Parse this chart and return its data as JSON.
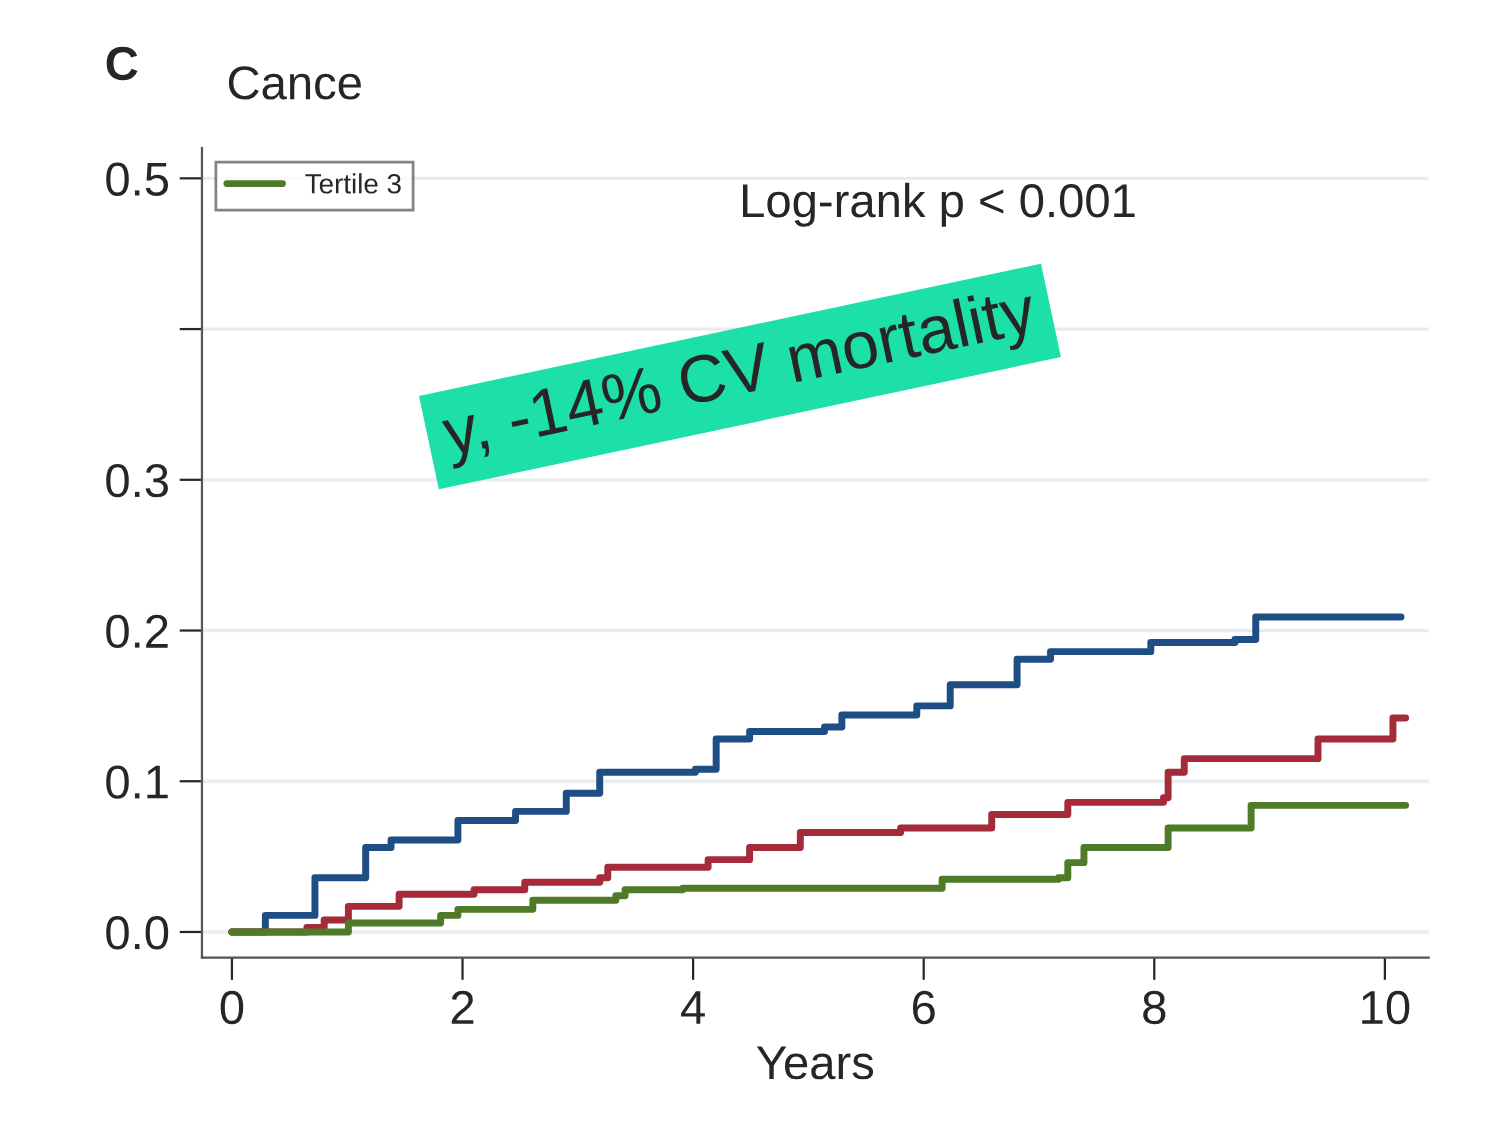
{
  "chart_data": {
    "type": "step",
    "title": "Cance",
    "xlabel": "Years",
    "annotations": [
      "C",
      "Log-rank p < 0.001",
      "y, -14% CV mortality"
    ],
    "series": [
      {
        "color": "#1f4e85",
        "x": [
          0,
          0.29,
          0.72,
          1.16,
          1.38,
          1.96,
          2.46,
          2.9,
          3.19,
          4.02,
          4.2,
          4.49,
          5.14,
          5.29,
          5.94,
          6.23,
          6.81,
          7.1,
          7.97,
          8.7,
          8.88,
          10.14
        ],
        "values": [
          0,
          0.011,
          0.036,
          0.056,
          0.061,
          0.074,
          0.08,
          0.092,
          0.106,
          0.108,
          0.128,
          0.133,
          0.136,
          0.144,
          0.15,
          0.164,
          0.181,
          0.186,
          0.192,
          0.194,
          0.209,
          0.209
        ]
      },
      {
        "color": "#a52a3a",
        "x": [
          0,
          0.65,
          0.8,
          1.01,
          1.45,
          2.1,
          2.54,
          3.19,
          3.26,
          4.13,
          4.49,
          4.93,
          5.8,
          6.59,
          7.25,
          8.08,
          8.12,
          8.26,
          9.38,
          9.42,
          10.04,
          10.07,
          10.18
        ],
        "values": [
          0,
          0.003,
          0.008,
          0.017,
          0.025,
          0.028,
          0.033,
          0.036,
          0.043,
          0.048,
          0.056,
          0.066,
          0.069,
          0.078,
          0.086,
          0.089,
          0.106,
          0.115,
          0.115,
          0.128,
          0.128,
          0.142,
          0.142
        ]
      },
      {
        "name": "Tertile 3",
        "color": "#4f7a28",
        "x": [
          0,
          0.58,
          1.01,
          1.81,
          1.96,
          2.61,
          3.33,
          3.41,
          3.91,
          6.12,
          6.16,
          7.17,
          7.25,
          7.39,
          8.08,
          8.12,
          8.8,
          8.84,
          10.18
        ],
        "values": [
          0,
          0,
          0.006,
          0.011,
          0.015,
          0.021,
          0.024,
          0.028,
          0.029,
          0.029,
          0.035,
          0.036,
          0.046,
          0.056,
          0.056,
          0.069,
          0.069,
          0.084,
          0.084
        ]
      }
    ],
    "xlim": [
      -0.26,
      10.38
    ],
    "xticks": [
      0,
      2,
      4,
      6,
      8,
      10
    ],
    "ylim": [
      -0.017,
      0.52
    ],
    "yticks": [
      {
        "value": 0,
        "label": "0.0"
      },
      {
        "value": 0.1,
        "label": "0.1"
      },
      {
        "value": 0.2,
        "label": "0.2"
      },
      {
        "value": 0.3,
        "label": "0.3"
      },
      {
        "value": 0.4,
        "label": null
      },
      {
        "value": 0.5,
        "label": "0.5"
      }
    ],
    "grid": "y",
    "legend": "top left",
    "line_style": "solid"
  }
}
